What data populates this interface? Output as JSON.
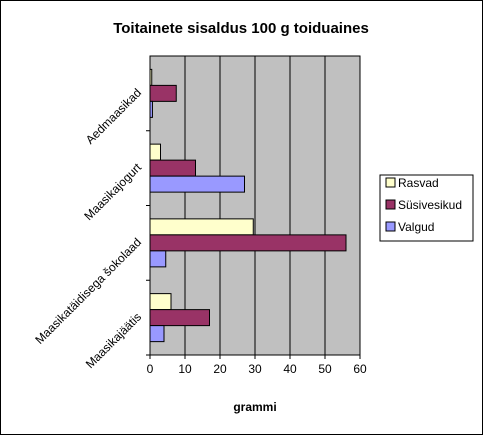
{
  "chart_data": {
    "type": "bar",
    "orientation": "horizontal",
    "title": "Toitainete sisaldus 100 g toiduaines",
    "xlabel": "grammi",
    "ylabel": "",
    "xlim": [
      0,
      60
    ],
    "x_ticks": [
      "0",
      "10",
      "20",
      "30",
      "40",
      "50",
      "60"
    ],
    "grid": true,
    "legend_position": "right",
    "categories": [
      "Aedmaasikad",
      "Maasikajogurt",
      "Maasikatäidisega šokolaad",
      "Maasikajäätis"
    ],
    "series": [
      {
        "name": "Rasvad",
        "color": "#ffffcc",
        "values": [
          0.5,
          3,
          29.5,
          6
        ]
      },
      {
        "name": "Süsivesikud",
        "color": "#993366",
        "values": [
          7.5,
          13,
          56,
          17
        ]
      },
      {
        "name": "Valgud",
        "color": "#9999ff",
        "values": [
          0.7,
          27,
          4.5,
          4
        ]
      }
    ],
    "colors": {
      "plot_bg": "#c0c0c0",
      "gridline": "#000000",
      "border": "#000000"
    }
  }
}
